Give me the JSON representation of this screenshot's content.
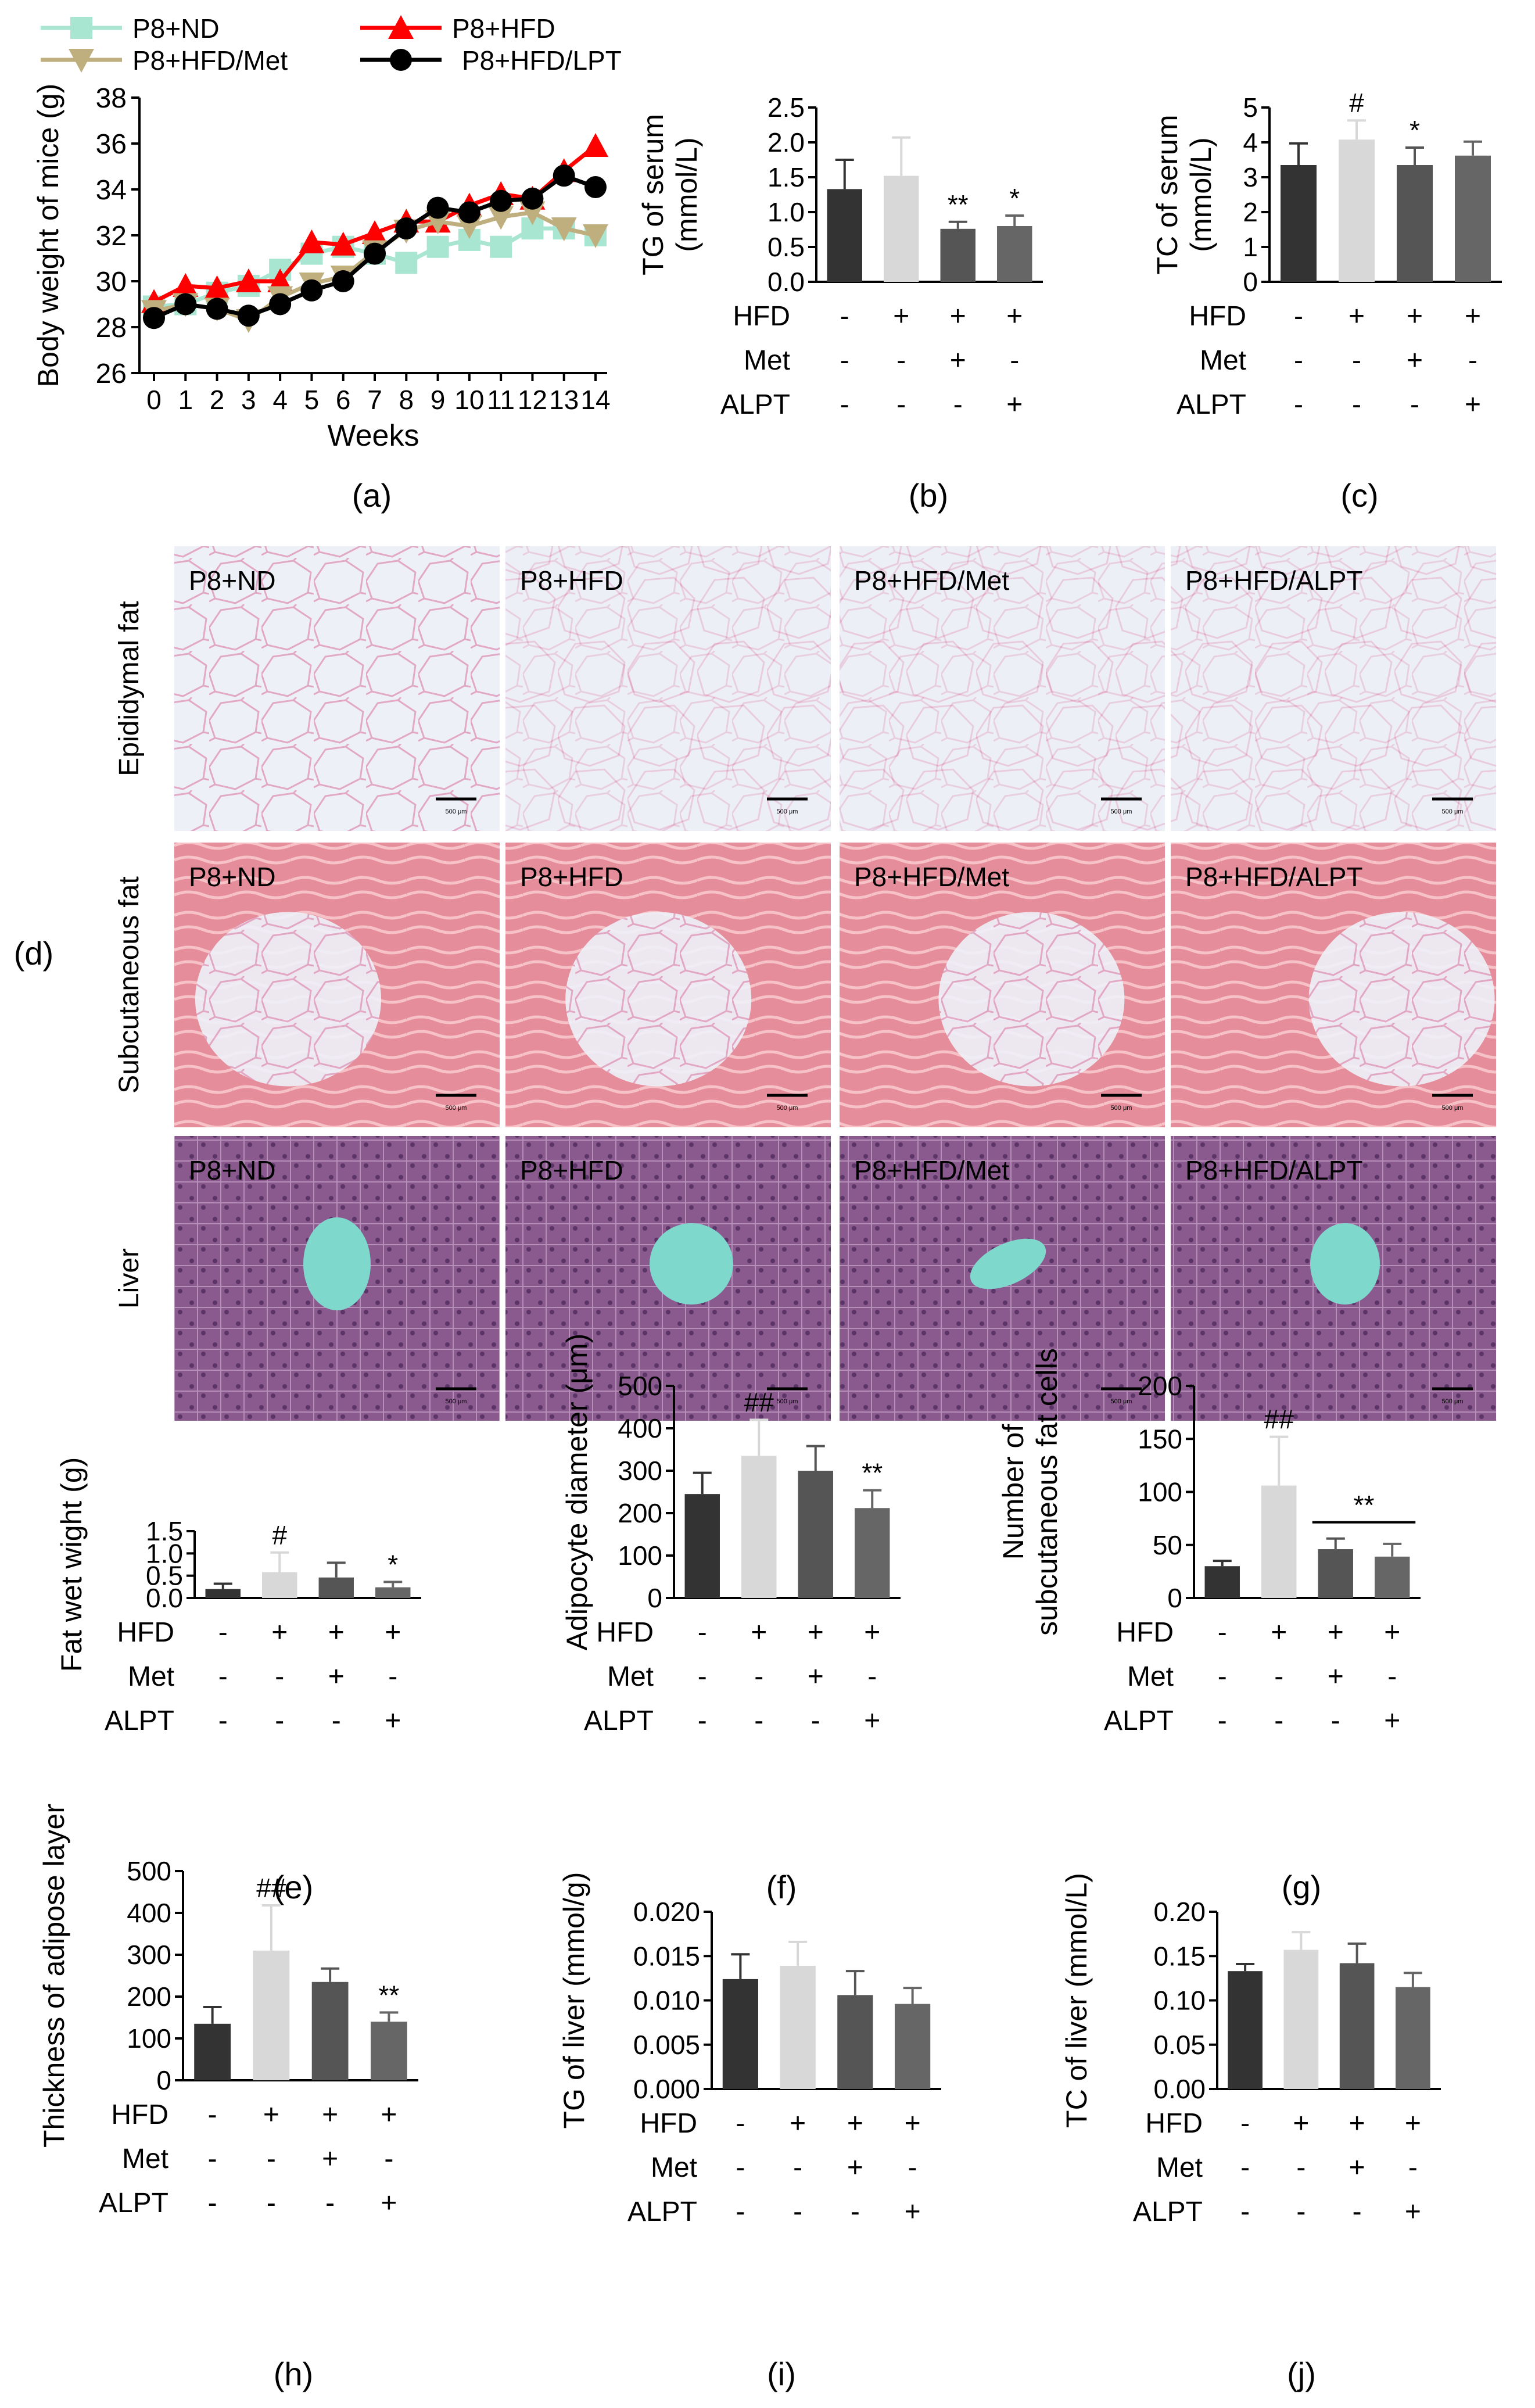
{
  "panel_labels": {
    "a": "(a)",
    "b": "(b)",
    "c": "(c)",
    "d": "(d)",
    "e": "(e)",
    "f": "(f)",
    "g": "(g)",
    "h": "(h)",
    "i": "(i)",
    "j": "(j)"
  },
  "colors": {
    "nd": "#a8e6d2",
    "hfd": "#ff0000",
    "met": "#bfae7e",
    "lpt": "#000000",
    "bar_dark": "#333333",
    "bar_light": "#d8d8d8",
    "bar_mid": "#555555",
    "bar_mid2": "#666666"
  },
  "treatment_rows": {
    "labels": [
      "HFD",
      "Met",
      "ALPT"
    ],
    "HFD": [
      "-",
      "+",
      "+",
      "+"
    ],
    "Met": [
      "-",
      "-",
      "+",
      "-"
    ],
    "ALPT": [
      "-",
      "-",
      "-",
      "+"
    ]
  },
  "histology": {
    "row_labels": [
      "Epididymal fat",
      "Subcutaneous fat",
      "Liver"
    ],
    "group_labels": [
      "P8+ND",
      "P8+HFD",
      "P8+HFD/Met",
      "P8+HFD/ALPT"
    ],
    "scale_text": "500 μm"
  },
  "chart_data": [
    {
      "id": "a",
      "type": "line",
      "ylabel": "Body weight of mice (g)",
      "xlabel": "Weeks",
      "ylim": [
        26,
        38
      ],
      "yticks": [
        26,
        28,
        30,
        32,
        34,
        36,
        38
      ],
      "x": [
        0,
        1,
        2,
        3,
        4,
        5,
        6,
        7,
        8,
        9,
        10,
        11,
        12,
        13,
        14
      ],
      "series": [
        {
          "name": "P8+ND",
          "marker": "square",
          "color": "#a8e6d2",
          "values": [
            28.9,
            29.0,
            29.5,
            29.8,
            30.5,
            31.2,
            31.5,
            31.2,
            30.8,
            31.5,
            31.8,
            31.5,
            32.3,
            32.3,
            32.0
          ]
        },
        {
          "name": "P8+HFD",
          "marker": "triangle-up",
          "color": "#ff0000",
          "values": [
            29.1,
            29.8,
            29.7,
            30.0,
            30.0,
            31.7,
            31.6,
            32.1,
            32.6,
            32.6,
            33.3,
            33.8,
            33.6,
            34.8,
            35.9
          ]
        },
        {
          "name": "P8+HFD/Met",
          "marker": "triangle-down",
          "color": "#bfae7e",
          "values": [
            28.7,
            29.0,
            28.8,
            28.3,
            29.3,
            29.9,
            30.2,
            31.3,
            32.2,
            32.6,
            32.4,
            32.8,
            33.0,
            32.3,
            32.0
          ]
        },
        {
          "name": "P8+HFD/LPT",
          "marker": "circle",
          "color": "#000000",
          "values": [
            28.4,
            29.0,
            28.8,
            28.5,
            29.0,
            29.6,
            30.0,
            31.2,
            32.3,
            33.2,
            33.0,
            33.5,
            33.6,
            34.6,
            34.1
          ]
        }
      ]
    },
    {
      "id": "b",
      "type": "bar",
      "ylabel": "TG of serum\n(mmol/L)",
      "ylim": [
        0,
        2.5
      ],
      "yticks": [
        "0.0",
        "0.5",
        "1.0",
        "1.5",
        "2.0",
        "2.5"
      ],
      "values": [
        1.33,
        1.52,
        0.76,
        0.8
      ],
      "errors": [
        0.42,
        0.55,
        0.1,
        0.15
      ],
      "annotations": [
        "",
        "",
        "**",
        "*"
      ]
    },
    {
      "id": "c",
      "type": "bar",
      "ylabel": "TC of serum\n(mmol/L)",
      "ylim": [
        0,
        5
      ],
      "yticks": [
        "0",
        "1",
        "2",
        "3",
        "4",
        "5"
      ],
      "values": [
        3.35,
        4.08,
        3.35,
        3.62
      ],
      "errors": [
        0.62,
        0.55,
        0.5,
        0.4
      ],
      "annotations": [
        "",
        "#",
        "*",
        ""
      ]
    },
    {
      "id": "e",
      "type": "bar",
      "ylabel": "Fat wet wight (g)",
      "ylim": [
        0,
        1.5
      ],
      "yticks": [
        "0.0",
        "0.5",
        "1.0",
        "1.5"
      ],
      "values": [
        0.2,
        0.58,
        0.46,
        0.24
      ],
      "errors": [
        0.12,
        0.44,
        0.33,
        0.12
      ],
      "annotations": [
        "",
        "#",
        "",
        "*"
      ]
    },
    {
      "id": "f",
      "type": "bar",
      "ylabel": "Adipocyte diameter (μm)",
      "ylim": [
        0,
        500
      ],
      "yticks": [
        "0",
        "100",
        "200",
        "300",
        "400",
        "500"
      ],
      "values": [
        245,
        335,
        300,
        212
      ],
      "errors": [
        50,
        85,
        58,
        42
      ],
      "annotations": [
        "",
        "##",
        "",
        "**"
      ]
    },
    {
      "id": "g",
      "type": "bar",
      "ylabel": "Number of\nsubcutaneous fat cells",
      "ylim": [
        0,
        200
      ],
      "yticks": [
        "0",
        "50",
        "100",
        "150",
        "200"
      ],
      "values": [
        30,
        106,
        46,
        39
      ],
      "errors": [
        5,
        46,
        10,
        12
      ],
      "annotations": [
        "",
        "##",
        "",
        ""
      ],
      "bracket_label": "**"
    },
    {
      "id": "h",
      "type": "bar",
      "ylabel": "Thickness of adipose layer",
      "ylim": [
        0,
        500
      ],
      "yticks": [
        "0",
        "100",
        "200",
        "300",
        "400",
        "500"
      ],
      "values": [
        135,
        310,
        235,
        140
      ],
      "errors": [
        40,
        108,
        32,
        22
      ],
      "annotations": [
        "",
        "##",
        "",
        "**"
      ]
    },
    {
      "id": "i",
      "type": "bar",
      "ylabel": "TG of liver (mmol/g)",
      "ylim": [
        0,
        0.02
      ],
      "yticks": [
        "0.000",
        "0.005",
        "0.010",
        "0.015",
        "0.020"
      ],
      "values": [
        0.0124,
        0.0139,
        0.0106,
        0.0096
      ],
      "errors": [
        0.0028,
        0.0027,
        0.0027,
        0.0018
      ],
      "annotations": [
        "",
        "",
        "",
        ""
      ]
    },
    {
      "id": "j",
      "type": "bar",
      "ylabel": "TC of liver (mmol/L)",
      "ylim": [
        0,
        0.2
      ],
      "yticks": [
        "0.00",
        "0.05",
        "0.10",
        "0.15",
        "0.20"
      ],
      "values": [
        0.133,
        0.157,
        0.142,
        0.115
      ],
      "errors": [
        0.008,
        0.02,
        0.022,
        0.016
      ],
      "annotations": [
        "",
        "",
        "",
        ""
      ]
    }
  ]
}
